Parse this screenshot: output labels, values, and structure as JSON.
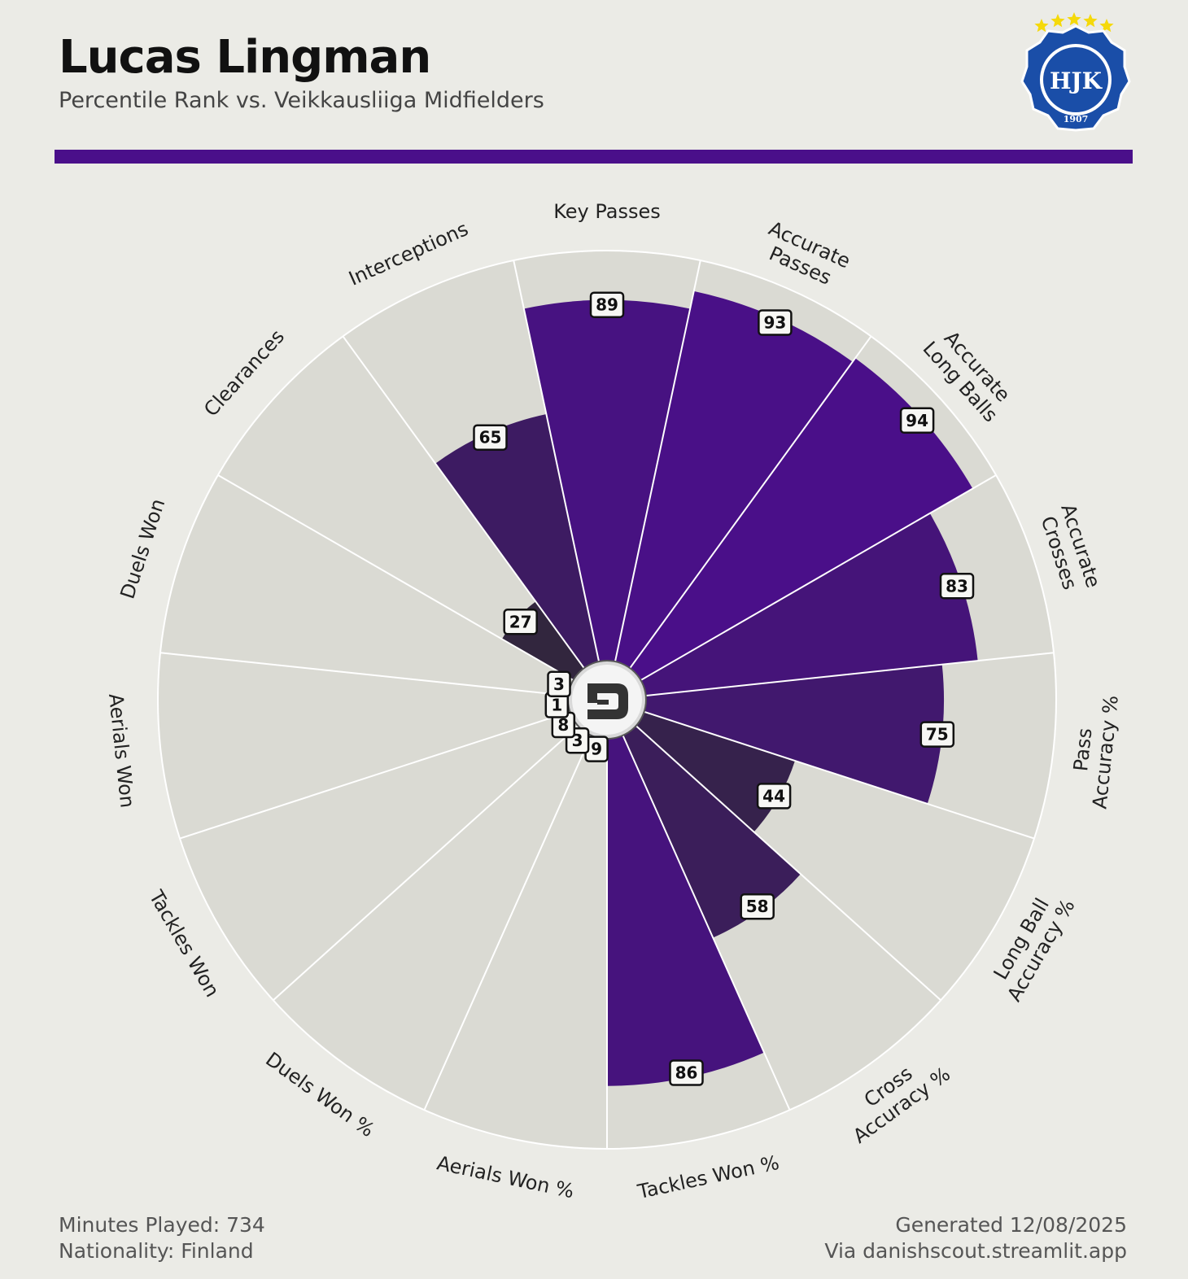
{
  "header": {
    "player_name": "Lucas Lingman",
    "subtitle": "Percentile Rank vs. Veikkausliiga Midfielders"
  },
  "colors": {
    "background": "#ebebe6",
    "accent": "#4a0f8a",
    "rule": "#4a0f8a",
    "slice_background": "#dadad3",
    "slice_border": "#ffffff",
    "crest_blue": "#1a4ea8",
    "crest_star": "#f5d90a"
  },
  "logo": {
    "icon": "hjk-crest-icon",
    "text": "HJK",
    "year": "1907"
  },
  "chart_data": {
    "type": "polar-bar",
    "range": [
      0,
      100
    ],
    "categories": [
      "Key Passes",
      "Accurate Passes",
      "Accurate Long Balls",
      "Accurate Crosses",
      "Pass Accuracy %",
      "Long Ball Accuracy %",
      "Cross Accuracy %",
      "Tackles Won %",
      "Aerials Won %",
      "Duels Won %",
      "Tackles Won",
      "Aerials Won",
      "Duels Won",
      "Clearances",
      "Interceptions"
    ],
    "category_lines": [
      [
        "Key Passes"
      ],
      [
        "Accurate",
        "Passes"
      ],
      [
        "Accurate",
        "Long Balls"
      ],
      [
        "Accurate",
        "Crosses"
      ],
      [
        "Pass",
        "Accuracy %"
      ],
      [
        "Long Ball",
        "Accuracy %"
      ],
      [
        "Cross",
        "Accuracy %"
      ],
      [
        "Tackles Won %"
      ],
      [
        "Aerials Won %"
      ],
      [
        "Duels Won %"
      ],
      [
        "Tackles Won"
      ],
      [
        "Aerials Won"
      ],
      [
        "Duels Won"
      ],
      [
        "Clearances"
      ],
      [
        "Interceptions"
      ]
    ],
    "values": [
      89,
      93,
      94,
      83,
      75,
      44,
      58,
      86,
      9,
      3,
      8,
      1,
      3,
      27,
      65
    ],
    "value_labels": [
      "89",
      "93",
      "94",
      "83",
      "75",
      "44",
      "58",
      "86",
      "9",
      "3",
      "8",
      "1",
      "3",
      "27",
      "65"
    ]
  },
  "footer": {
    "minutes": "Minutes Played: 734",
    "nationality": "Nationality: Finland",
    "generated": "Generated 12/08/2025",
    "source": "Via danishscout.streamlit.app"
  }
}
